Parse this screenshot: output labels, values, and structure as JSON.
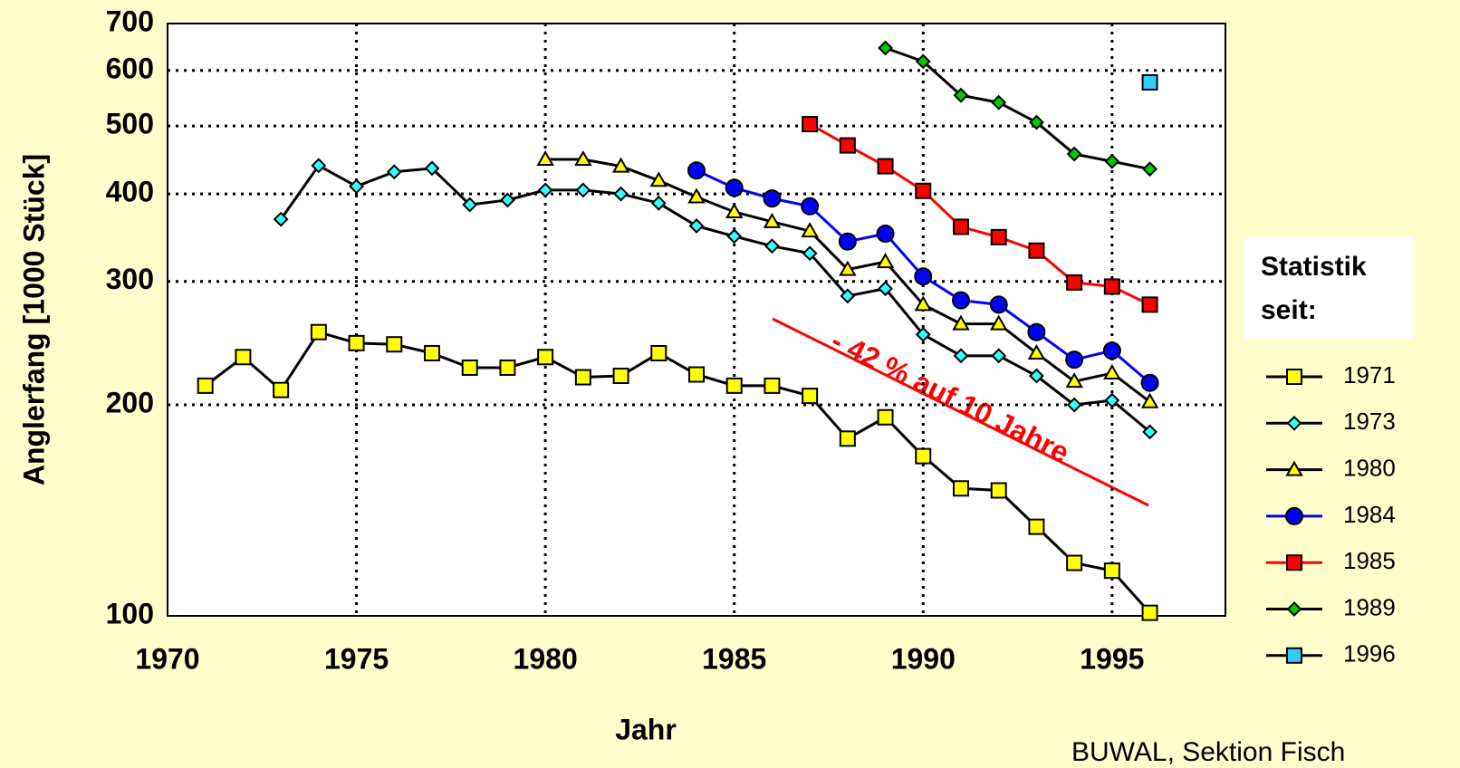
{
  "chart_data": {
    "type": "line",
    "y_label": "Anglerfang [1000 Stück]",
    "x_label": "Jahr",
    "annotation": "- 42 % auf 10 Jahre",
    "legend_title": [
      "Statistik",
      "seit:"
    ],
    "source": "BUWAL, Sektion Fisch",
    "x": [
      1971,
      1972,
      1973,
      1974,
      1975,
      1976,
      1977,
      1978,
      1979,
      1980,
      1981,
      1982,
      1983,
      1984,
      1985,
      1986,
      1987,
      1988,
      1989,
      1990,
      1991,
      1992,
      1993,
      1994,
      1995,
      1996
    ],
    "series": [
      {
        "name": "1971",
        "color": "#ffff00",
        "line_color": "#000000",
        "marker": "square",
        "values": [
          213,
          234,
          210,
          254,
          245,
          244,
          237,
          226,
          226,
          234,
          219,
          220,
          237,
          221,
          213,
          213,
          206,
          179,
          192,
          169,
          152,
          151,
          134,
          119,
          116,
          101
        ]
      },
      {
        "name": "1973",
        "color": "#33ffff",
        "line_color": "#000000",
        "marker": "diamond",
        "values": [
          null,
          null,
          368,
          439,
          410,
          430,
          435,
          386,
          392,
          405,
          405,
          400,
          388,
          360,
          348,
          337,
          329,
          286,
          293,
          252,
          235,
          235,
          220,
          200,
          203,
          183
        ]
      },
      {
        "name": "1980",
        "color": "#ffff00",
        "line_color": "#000000",
        "marker": "triangle",
        "values": [
          null,
          null,
          null,
          null,
          null,
          null,
          null,
          null,
          null,
          448,
          448,
          438,
          418,
          396,
          377,
          365,
          354,
          312,
          320,
          278,
          261,
          261,
          237,
          216,
          222,
          202
        ]
      },
      {
        "name": "1984",
        "color": "#0000ff",
        "line_color": "#0000ff",
        "marker": "circle",
        "values": [
          null,
          null,
          null,
          null,
          null,
          null,
          null,
          null,
          null,
          null,
          null,
          null,
          null,
          432,
          408,
          394,
          384,
          342,
          351,
          305,
          282,
          278,
          254,
          232,
          239,
          215
        ]
      },
      {
        "name": "1985",
        "color": "#ff0000",
        "line_color": "#ff0000",
        "marker": "square",
        "values": [
          null,
          null,
          null,
          null,
          null,
          null,
          null,
          null,
          null,
          null,
          null,
          null,
          null,
          null,
          null,
          null,
          503,
          469,
          438,
          404,
          359,
          347,
          332,
          299,
          295,
          278
        ]
      },
      {
        "name": "1989",
        "color": "#00cc00",
        "line_color": "#000000",
        "marker": "diamond",
        "values": [
          null,
          null,
          null,
          null,
          null,
          null,
          null,
          null,
          null,
          null,
          null,
          null,
          null,
          null,
          null,
          null,
          null,
          null,
          646,
          618,
          553,
          540,
          506,
          456,
          445,
          434
        ]
      },
      {
        "name": "1996",
        "color": "#33ccff",
        "line_color": "#000000",
        "marker": "square",
        "values": [
          null,
          null,
          null,
          null,
          null,
          null,
          null,
          null,
          null,
          null,
          null,
          null,
          null,
          null,
          null,
          null,
          null,
          null,
          null,
          null,
          null,
          null,
          null,
          null,
          null,
          577
        ]
      }
    ],
    "xlim": [
      1970,
      1998
    ],
    "xticks": [
      1970,
      1975,
      1980,
      1985,
      1990,
      1995
    ],
    "ylim": [
      100,
      700
    ],
    "yticks": [
      100,
      200,
      300,
      400,
      500,
      600,
      700
    ],
    "ylog": true,
    "grid": true,
    "legend": "right"
  }
}
